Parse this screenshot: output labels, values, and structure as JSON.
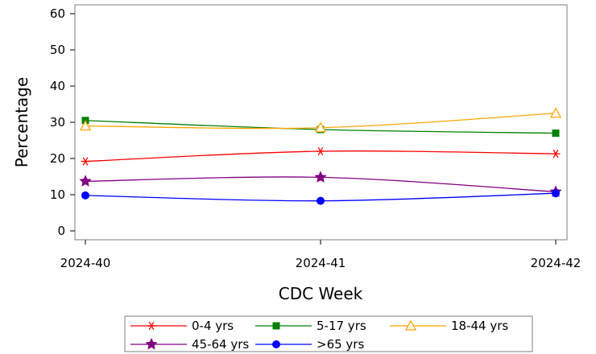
{
  "chart_data": {
    "type": "line",
    "title": "",
    "xlabel": "CDC Week",
    "ylabel": "Percentage",
    "categories": [
      "2024-40",
      "2024-41",
      "2024-42"
    ],
    "ylim": [
      0,
      60
    ],
    "yticks": [
      0,
      10,
      20,
      30,
      40,
      50,
      60
    ],
    "grid": false,
    "legend_position": "bottom",
    "series": [
      {
        "name": "0-4 yrs",
        "color": "#ff0000",
        "marker": "asterisk",
        "values": [
          19.2,
          22.0,
          21.3
        ]
      },
      {
        "name": "5-17 yrs",
        "color": "#008000",
        "marker": "square",
        "values": [
          30.5,
          28.0,
          27.0
        ]
      },
      {
        "name": "18-44 yrs",
        "color": "#ffa500",
        "marker": "triangle",
        "values": [
          29.0,
          28.5,
          32.5
        ]
      },
      {
        "name": "45-64 yrs",
        "color": "#800080",
        "marker": "star",
        "values": [
          13.7,
          14.8,
          10.8
        ]
      },
      {
        "name": ">65 yrs",
        "color": "#0000ff",
        "marker": "circle",
        "values": [
          9.8,
          8.3,
          10.4
        ]
      }
    ]
  }
}
